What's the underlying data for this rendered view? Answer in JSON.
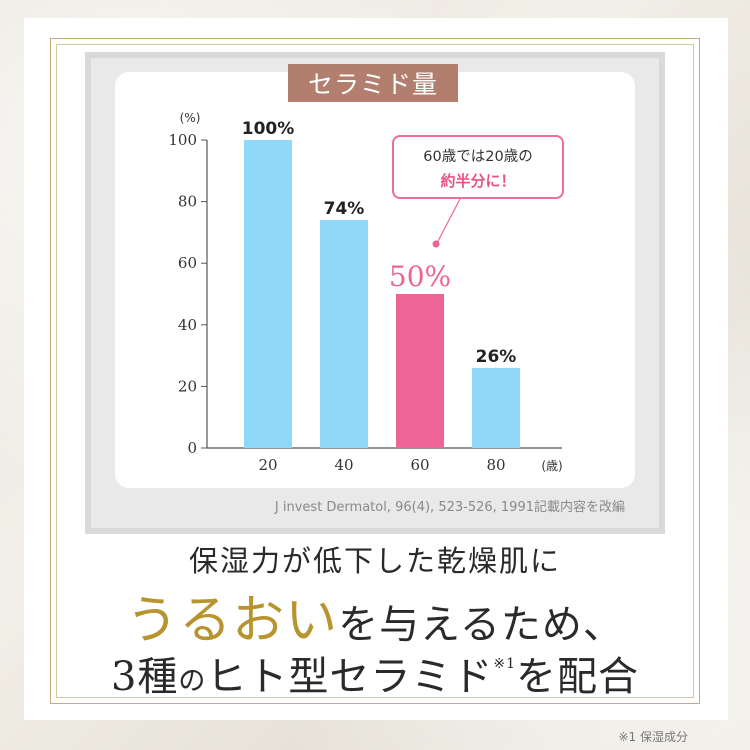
{
  "chart_data": {
    "type": "bar",
    "title": "セラミド量",
    "ylabel": "(%)",
    "xunit": "(歳)",
    "categories": [
      "20",
      "40",
      "60",
      "80"
    ],
    "values": [
      100,
      74,
      50,
      26
    ],
    "value_labels": [
      "100%",
      "74%",
      "50%",
      "26%"
    ],
    "highlight_index": 2,
    "ylim": [
      0,
      100
    ],
    "yticks": [
      "0",
      "20",
      "40",
      "60",
      "80",
      "100"
    ],
    "grid": false,
    "colors": {
      "bar": "#8fd8f8",
      "highlight": "#ef6496",
      "axis": "#555555"
    }
  },
  "callout": {
    "line1": "60歳では20歳の",
    "line2": "約半分に！"
  },
  "source": "J invest Dermatol, 96(4), 523-526, 1991記載内容を改編",
  "headline": {
    "line1": "保湿力が低下した乾燥肌に",
    "line2_gold": "うるおい",
    "line2_rest": "を与えるため、",
    "line3_a": "3種",
    "line3_b": "の",
    "line3_c": "ヒト型セラミド",
    "line3_sup": "※1",
    "line3_d": "を配合"
  },
  "footnote": "※1 保湿成分"
}
